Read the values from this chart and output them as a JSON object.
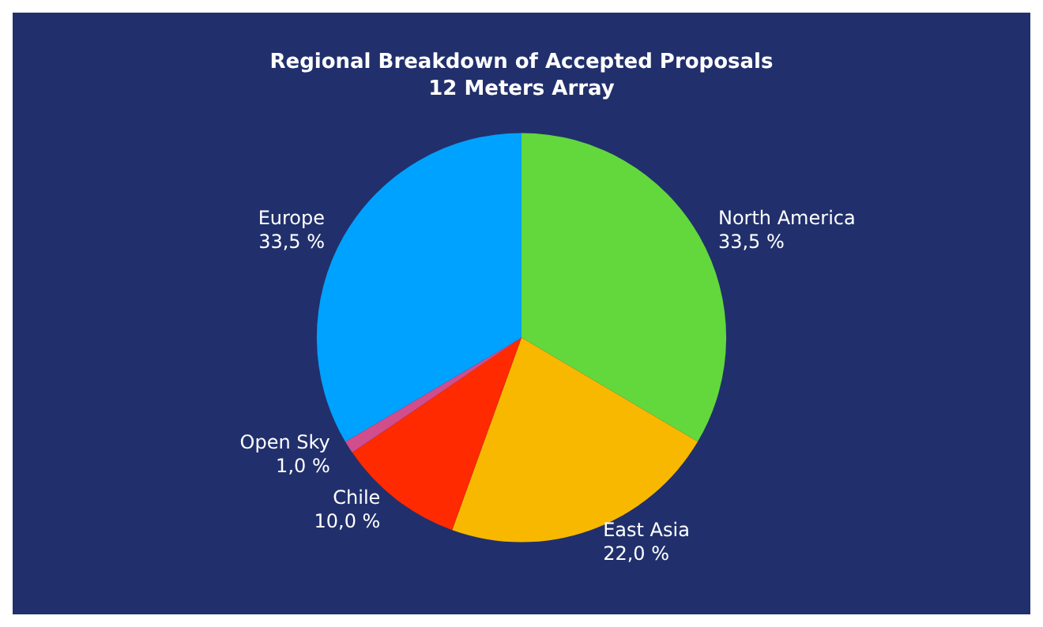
{
  "chart_data": {
    "type": "pie",
    "title": "Regional Breakdown of Accepted Proposals\n12 Meters Array",
    "categories": [
      "North America",
      "East Asia",
      "Chile",
      "Open Sky",
      "Europe"
    ],
    "values": [
      33.5,
      22.0,
      10.0,
      1.0,
      33.5
    ],
    "value_labels": [
      "33,5 %",
      "22,0 %",
      "10,0 %",
      "1,0 %",
      "33,5 %"
    ],
    "colors": [
      "#62d83c",
      "#f8b800",
      "#ff2a00",
      "#d14d8c",
      "#00a2ff"
    ],
    "legend": false
  }
}
